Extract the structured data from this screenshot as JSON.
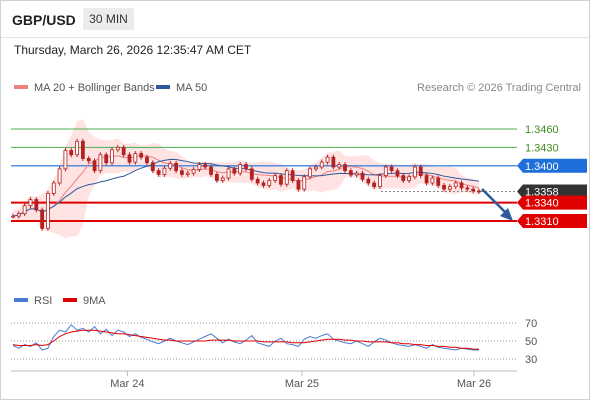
{
  "header": {
    "symbol": "GBP/USD",
    "timeframe": "30 MIN",
    "timestamp": "Thursday, March 26, 2026 12:35:47 AM CET"
  },
  "legend": {
    "ma20": "MA 20 + Bollinger Bands",
    "ma50": "MA 50",
    "copyright": "Research © 2026 Trading Central",
    "rsi": "RSI",
    "rsi_ma": "9MA"
  },
  "colors": {
    "ma20": "#f08080",
    "ma50": "#2e5a9c",
    "bollinger_fill": "#ffe3e3",
    "candle": "#b22222",
    "target_level": "#4caf50",
    "pivot_level": "#1e6fd9",
    "support_level": "#e00000",
    "rsi": "#4a7bd4",
    "rsi_ma": "#e00000"
  },
  "chart_data": [
    {
      "type": "candlestick",
      "title": "GBP/USD 30 MIN",
      "ylim": [
        1.327,
        1.349
      ],
      "x_ticks": [
        "Mar 24",
        "Mar 25",
        "Mar 26"
      ],
      "last_price": 1.3358,
      "levels": [
        {
          "label": "1.3460",
          "value": 1.346,
          "role": "target"
        },
        {
          "label": "1.3430",
          "value": 1.343,
          "role": "target"
        },
        {
          "label": "1.3400",
          "value": 1.34,
          "role": "pivot"
        },
        {
          "label": "1.3358",
          "value": 1.3358,
          "role": "last"
        },
        {
          "label": "1.3340",
          "value": 1.334,
          "role": "support"
        },
        {
          "label": "1.3310",
          "value": 1.331,
          "role": "support"
        }
      ],
      "close_path": [
        1.3318,
        1.3322,
        1.3335,
        1.3345,
        1.3328,
        1.3298,
        1.3355,
        1.3372,
        1.3395,
        1.3425,
        1.3418,
        1.344,
        1.3412,
        1.3408,
        1.3392,
        1.3418,
        1.3405,
        1.3426,
        1.343,
        1.3418,
        1.3406,
        1.342,
        1.3414,
        1.3405,
        1.3392,
        1.3386,
        1.3396,
        1.3404,
        1.3392,
        1.3386,
        1.3388,
        1.3394,
        1.3402,
        1.3398,
        1.3386,
        1.3376,
        1.338,
        1.3395,
        1.3388,
        1.3402,
        1.3395,
        1.3378,
        1.3372,
        1.3368,
        1.3376,
        1.3384,
        1.337,
        1.3392,
        1.3376,
        1.3362,
        1.3382,
        1.3395,
        1.3398,
        1.3406,
        1.3414,
        1.3398,
        1.3402,
        1.3392,
        1.3385,
        1.3388,
        1.3378,
        1.3372,
        1.3366,
        1.3384,
        1.3398,
        1.3392,
        1.3384,
        1.3376,
        1.3382,
        1.3398,
        1.3384,
        1.3372,
        1.338,
        1.3368,
        1.3362,
        1.3366,
        1.3372,
        1.3364,
        1.3362,
        1.3359,
        1.3358
      ]
    },
    {
      "type": "line",
      "title": "RSI",
      "ylim": [
        20,
        80
      ],
      "y_ticks": [
        70,
        50,
        30
      ],
      "rsi": [
        45,
        42,
        46,
        44,
        48,
        40,
        42,
        55,
        62,
        60,
        68,
        62,
        64,
        60,
        66,
        58,
        63,
        56,
        62,
        60,
        55,
        58,
        54,
        52,
        49,
        47,
        50,
        53,
        50,
        48,
        46,
        49,
        52,
        55,
        58,
        53,
        48,
        52,
        49,
        47,
        51,
        56,
        48,
        46,
        44,
        50,
        53,
        47,
        46,
        44,
        52,
        55,
        53,
        56,
        58,
        52,
        50,
        48,
        47,
        50,
        47,
        44,
        49,
        53,
        51,
        48,
        46,
        45,
        44,
        46,
        44,
        42,
        46,
        43,
        42,
        41,
        40,
        42,
        41,
        40,
        40
      ],
      "rsi_ma": [
        46,
        45,
        45,
        45,
        46,
        45,
        46,
        50,
        55,
        58,
        60,
        61,
        62,
        62,
        62,
        61,
        60,
        59,
        58,
        58,
        57,
        56,
        55,
        54,
        53,
        52,
        51,
        51,
        50,
        50,
        50,
        50,
        50,
        50,
        51,
        51,
        51,
        51,
        50,
        50,
        50,
        50,
        50,
        49,
        49,
        49,
        49,
        49,
        48,
        48,
        48,
        49,
        50,
        51,
        52,
        52,
        52,
        51,
        51,
        50,
        50,
        49,
        49,
        49,
        49,
        48,
        48,
        47,
        47,
        46,
        46,
        45,
        45,
        44,
        44,
        43,
        43,
        42,
        42,
        41,
        41
      ]
    }
  ]
}
